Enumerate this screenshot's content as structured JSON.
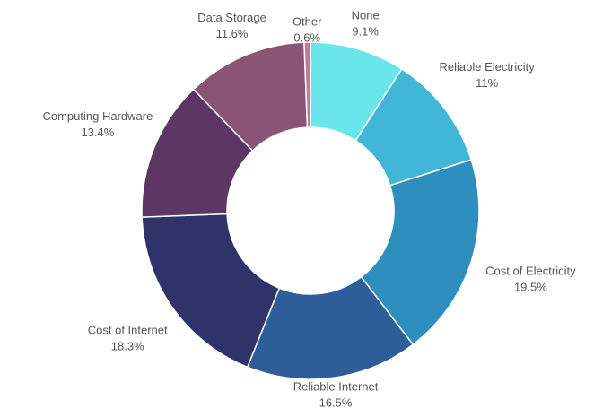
{
  "chart_data": {
    "type": "donut",
    "categories": [
      "None",
      "Reliable Electricity",
      "Cost of Electricity",
      "Reliable Internet",
      "Cost of Internet",
      "Computing Hardware",
      "Data Storage",
      "Other"
    ],
    "values": [
      9.1,
      11,
      19.5,
      16.5,
      18.3,
      13.4,
      11.6,
      0.6
    ],
    "value_labels": [
      "9.1%",
      "11%",
      "19.5%",
      "16.5%",
      "18.3%",
      "13.4%",
      "11.6%",
      "0.6%"
    ],
    "colors": [
      "#6ae5ea",
      "#41b6d6",
      "#2e8fbf",
      "#2d5e99",
      "#2f3369",
      "#5c3766",
      "#8a5474",
      "#c07a9a"
    ]
  }
}
